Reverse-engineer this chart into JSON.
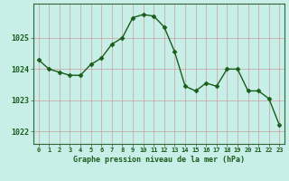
{
  "x": [
    0,
    1,
    2,
    3,
    4,
    5,
    6,
    7,
    8,
    9,
    10,
    11,
    12,
    13,
    14,
    15,
    16,
    17,
    18,
    19,
    20,
    21,
    22,
    23
  ],
  "y": [
    1024.3,
    1024.0,
    1023.9,
    1023.8,
    1023.8,
    1024.15,
    1024.35,
    1024.8,
    1025.0,
    1025.65,
    1025.75,
    1025.7,
    1025.35,
    1024.55,
    1023.45,
    1023.3,
    1023.55,
    1023.45,
    1024.0,
    1024.0,
    1023.3,
    1023.3,
    1023.05,
    1022.2
  ],
  "line_color": "#1a5c1a",
  "marker": "D",
  "marker_size": 2.5,
  "bg_color": "#c8eee8",
  "grid_color_v": "#b8d8d0",
  "grid_color_h": "#e8b8b8",
  "xlabel": "Graphe pression niveau de la mer (hPa)",
  "xlabel_color": "#1a5c1a",
  "tick_color": "#1a5c1a",
  "axis_color": "#336633",
  "ylim": [
    1021.6,
    1026.1
  ],
  "yticks": [
    1022,
    1023,
    1024,
    1025
  ],
  "xlim": [
    -0.5,
    23.5
  ],
  "xticks": [
    0,
    1,
    2,
    3,
    4,
    5,
    6,
    7,
    8,
    9,
    10,
    11,
    12,
    13,
    14,
    15,
    16,
    17,
    18,
    19,
    20,
    21,
    22,
    23
  ],
  "figsize": [
    3.2,
    2.0
  ],
  "dpi": 100
}
